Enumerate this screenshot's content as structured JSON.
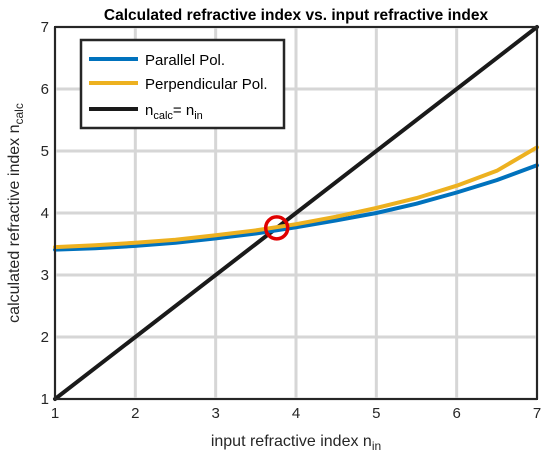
{
  "chart_data": {
    "type": "line",
    "title": "Calculated refractive index vs. input refractive index",
    "xlabel": {
      "main": "input refractive index n",
      "sub": "in"
    },
    "ylabel": {
      "main": "calculated refractive index n",
      "sub": "calc"
    },
    "xlim": [
      1,
      7
    ],
    "ylim": [
      1,
      7
    ],
    "xticks": [
      "1",
      "2",
      "3",
      "4",
      "5",
      "6",
      "7"
    ],
    "yticks": [
      "1",
      "2",
      "3",
      "4",
      "5",
      "6",
      "7"
    ],
    "grid": true,
    "legend_position": "top-left",
    "series": [
      {
        "name": "Parallel Pol.",
        "color": "#0072BD",
        "x": [
          1,
          1.5,
          2,
          2.5,
          3,
          3.5,
          4,
          4.5,
          5,
          5.5,
          6,
          6.5,
          7
        ],
        "y": [
          3.41,
          3.43,
          3.47,
          3.52,
          3.59,
          3.67,
          3.77,
          3.88,
          4.0,
          4.15,
          4.33,
          4.53,
          4.77
        ]
      },
      {
        "name": "Perpendicular Pol.",
        "color": "#EDB120",
        "x": [
          1,
          1.5,
          2,
          2.5,
          3,
          3.5,
          4,
          4.5,
          5,
          5.5,
          6,
          6.5,
          7
        ],
        "y": [
          3.45,
          3.48,
          3.52,
          3.57,
          3.64,
          3.72,
          3.82,
          3.94,
          4.08,
          4.24,
          4.44,
          4.68,
          5.06
        ]
      },
      {
        "name": {
          "main": "n",
          "sub1": "calc",
          "mid": "= n",
          "sub2": "in"
        },
        "color": "#1a1a1a",
        "x": [
          1,
          7
        ],
        "y": [
          1,
          7
        ]
      }
    ],
    "annotations": [
      {
        "type": "circle-marker",
        "x": 3.76,
        "y": 3.76,
        "color": "#E00000"
      }
    ]
  }
}
